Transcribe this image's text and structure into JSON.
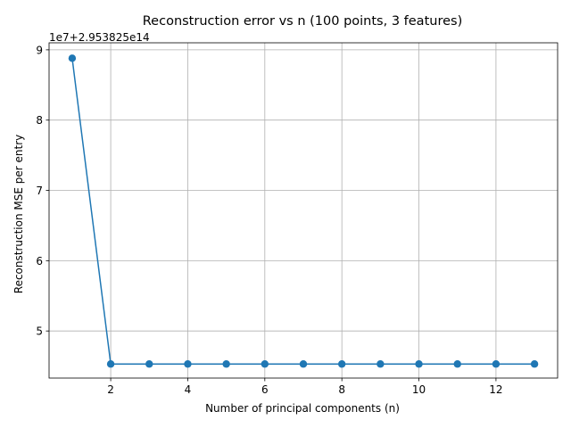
{
  "chart_data": {
    "type": "line",
    "title": "Reconstruction error vs n (100 points, 3 features)",
    "xlabel": "Number of principal components (n)",
    "ylabel": "Reconstruction MSE per entry",
    "y_offset_label": "1e7+2.953825e14",
    "xlim": [
      0.4,
      13.6
    ],
    "ylim": [
      4.33,
      9.1
    ],
    "xticks": [
      2,
      4,
      6,
      8,
      10,
      12
    ],
    "yticks": [
      5,
      6,
      7,
      8,
      9
    ],
    "grid": true,
    "line_color": "#1f77b4",
    "marker": "circle",
    "x": [
      1,
      2,
      3,
      4,
      5,
      6,
      7,
      8,
      9,
      10,
      11,
      12,
      13
    ],
    "y": [
      8.88,
      4.53,
      4.53,
      4.53,
      4.53,
      4.53,
      4.53,
      4.53,
      4.53,
      4.53,
      4.53,
      4.53,
      4.53
    ]
  }
}
